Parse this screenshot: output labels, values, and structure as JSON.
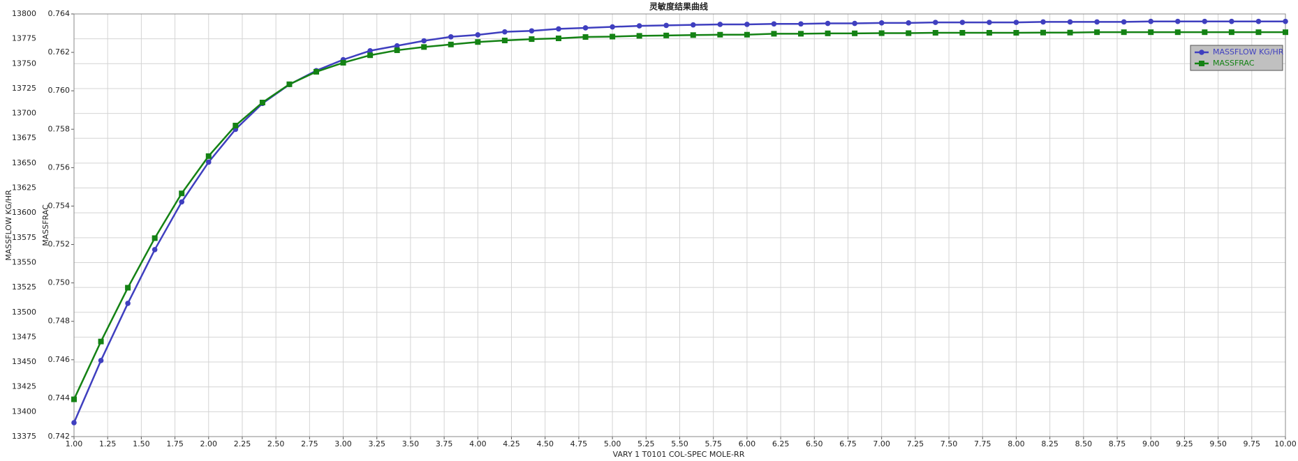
{
  "chart_data": {
    "type": "line",
    "title": "灵敏度结果曲线",
    "x_label": "VARY   1 T0101 COL-SPEC MOLE-RR",
    "y_label": "MASSFLOW KG/HR",
    "y2_label": "MASSFRAC",
    "x": [
      1.0,
      1.2,
      1.4,
      1.6,
      1.8,
      2.0,
      2.2,
      2.4,
      2.6,
      2.8,
      3.0,
      3.2,
      3.4,
      3.6,
      3.8,
      4.0,
      4.2,
      4.4,
      4.6,
      4.8,
      5.0,
      5.2,
      5.4,
      5.6,
      5.8,
      6.0,
      6.2,
      6.4,
      6.6,
      6.8,
      7.0,
      7.2,
      7.4,
      7.6,
      7.8,
      8.0,
      8.2,
      8.4,
      8.6,
      8.8,
      9.0,
      9.2,
      9.4,
      9.6,
      9.8,
      10.0
    ],
    "series": [
      {
        "name": "MASSFLOW KG/HR",
        "color": "#3f3fbf",
        "marker": "circle",
        "values": [
          13389,
          13451.5,
          13509,
          13563,
          13611,
          13651,
          13684,
          13710,
          13729,
          13743,
          13754,
          13763,
          13768,
          13773,
          13777,
          13779,
          13782,
          13783,
          13785,
          13786,
          13787,
          13788,
          13788.5,
          13789,
          13789.5,
          13789.5,
          13790,
          13790,
          13790.5,
          13790.5,
          13791,
          13791,
          13791.5,
          13791.5,
          13791.5,
          13791.5,
          13792,
          13792,
          13792,
          13792,
          13792.5,
          13792.5,
          13792.5,
          13792.5,
          13792.5,
          13792.5
        ]
      },
      {
        "name": "MASSFRAC",
        "color": "#148214",
        "marker": "square",
        "axis": "y2",
        "values": [
          0.74394,
          0.74695,
          0.74975,
          0.75233,
          0.75466,
          0.7566,
          0.75819,
          0.75939,
          0.76034,
          0.76099,
          0.76146,
          0.76185,
          0.76211,
          0.76228,
          0.76241,
          0.76254,
          0.76262,
          0.76269,
          0.76273,
          0.7628,
          0.76282,
          0.76286,
          0.76288,
          0.7629,
          0.76292,
          0.76292,
          0.76297,
          0.76297,
          0.76299,
          0.76299,
          0.763,
          0.763,
          0.76302,
          0.76302,
          0.76302,
          0.76302,
          0.76303,
          0.76303,
          0.76305,
          0.76305,
          0.76305,
          0.76305,
          0.76305,
          0.76305,
          0.76305,
          0.76305
        ]
      }
    ],
    "xlim": [
      1,
      10
    ],
    "xticks": [
      {
        "value": 1,
        "label": "1.00"
      },
      {
        "value": 1.25,
        "label": "1.25"
      },
      {
        "value": 1.5,
        "label": "1.50"
      },
      {
        "value": 1.75,
        "label": "1.75"
      },
      {
        "value": 2,
        "label": "2.00"
      },
      {
        "value": 2.25,
        "label": "2.25"
      },
      {
        "value": 2.5,
        "label": "2.50"
      },
      {
        "value": 2.75,
        "label": "2.75"
      },
      {
        "value": 3,
        "label": "3.00"
      },
      {
        "value": 3.25,
        "label": "3.25"
      },
      {
        "value": 3.5,
        "label": "3.50"
      },
      {
        "value": 3.75,
        "label": "3.75"
      },
      {
        "value": 4,
        "label": "4.00"
      },
      {
        "value": 4.25,
        "label": "4.25"
      },
      {
        "value": 4.5,
        "label": "4.50"
      },
      {
        "value": 4.75,
        "label": "4.75"
      },
      {
        "value": 5,
        "label": "5.00"
      },
      {
        "value": 5.25,
        "label": "5.25"
      },
      {
        "value": 5.5,
        "label": "5.50"
      },
      {
        "value": 5.75,
        "label": "5.75"
      },
      {
        "value": 6,
        "label": "6.00"
      },
      {
        "value": 6.25,
        "label": "6.25"
      },
      {
        "value": 6.5,
        "label": "6.50"
      },
      {
        "value": 6.75,
        "label": "6.75"
      },
      {
        "value": 7,
        "label": "7.00"
      },
      {
        "value": 7.25,
        "label": "7.25"
      },
      {
        "value": 7.5,
        "label": "7.50"
      },
      {
        "value": 7.75,
        "label": "7.75"
      },
      {
        "value": 8,
        "label": "8.00"
      },
      {
        "value": 8.25,
        "label": "8.25"
      },
      {
        "value": 8.5,
        "label": "8.50"
      },
      {
        "value": 8.75,
        "label": "8.75"
      },
      {
        "value": 9,
        "label": "9.00"
      },
      {
        "value": 9.25,
        "label": "9.25"
      },
      {
        "value": 9.5,
        "label": "9.50"
      },
      {
        "value": 9.75,
        "label": "9.75"
      },
      {
        "value": 10,
        "label": "10.00"
      }
    ],
    "ylim": [
      13375,
      13800
    ],
    "yticks": [
      13375,
      13400,
      13425,
      13450,
      13475,
      13500,
      13525,
      13550,
      13575,
      13600,
      13625,
      13650,
      13675,
      13700,
      13725,
      13750,
      13775,
      13800
    ],
    "y2lim": [
      0.742,
      0.764
    ],
    "y2ticks": [
      0.742,
      0.744,
      0.746,
      0.748,
      {
        "value": 0.75,
        "label": "0.750"
      },
      0.752,
      0.754,
      0.756,
      0.758,
      {
        "value": 0.76,
        "label": "0.760"
      },
      0.762,
      0.764
    ],
    "grid": true,
    "legend": "upper right"
  }
}
